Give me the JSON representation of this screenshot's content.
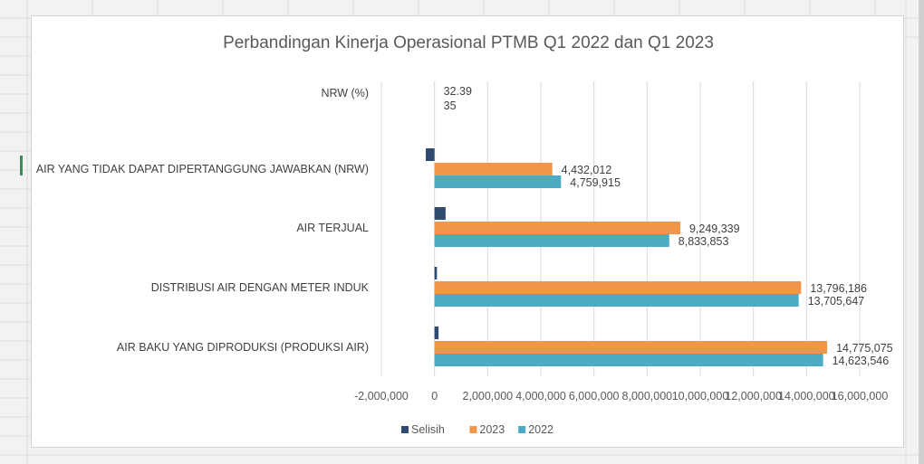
{
  "chart_data": {
    "type": "bar",
    "orientation": "horizontal",
    "title": "Perbandingan Kinerja Operasional PTMB Q1 2022 dan Q1 2023",
    "categories": [
      "NRW (%)",
      "AIR YANG TIDAK DAPAT DIPERTANGGUNG JAWABKAN (NRW)",
      "AIR TERJUAL",
      "DISTRIBUSI AIR DENGAN METER INDUK",
      "AIR BAKU YANG DIPRODUKSI (PRODUKSI AIR)"
    ],
    "series": [
      {
        "name": "Selisih",
        "color": "#2e4a6e",
        "values": [
          null,
          -327903,
          415486,
          90539,
          151529
        ],
        "labels": [
          "",
          "",
          "",
          "",
          ""
        ]
      },
      {
        "name": "2023",
        "color": "#f0954a",
        "values": [
          32.39,
          4432012,
          9249339,
          13796186,
          14775075
        ],
        "labels": [
          "32.39",
          "4,432,012",
          "9,249,339",
          "13,796,186",
          "14,775,075"
        ]
      },
      {
        "name": "2022",
        "color": "#4aabc3",
        "values": [
          35,
          4759915,
          8833853,
          13705647,
          14623546
        ],
        "labels": [
          "35",
          "4,759,915",
          "8,833,853",
          "13,705,647",
          "14,623,546"
        ]
      }
    ],
    "xlim": [
      -2000000,
      16000000
    ],
    "x_ticks": [
      -2000000,
      0,
      2000000,
      4000000,
      6000000,
      8000000,
      10000000,
      12000000,
      14000000,
      16000000
    ],
    "x_tick_labels": [
      "-2,000,000",
      "0",
      "2,000,000",
      "4,000,000",
      "6,000,000",
      "8,000,000",
      "10,000,000",
      "12,000,000",
      "14,000,000",
      "16,000,000"
    ],
    "grid": true,
    "legend_position": "bottom"
  }
}
